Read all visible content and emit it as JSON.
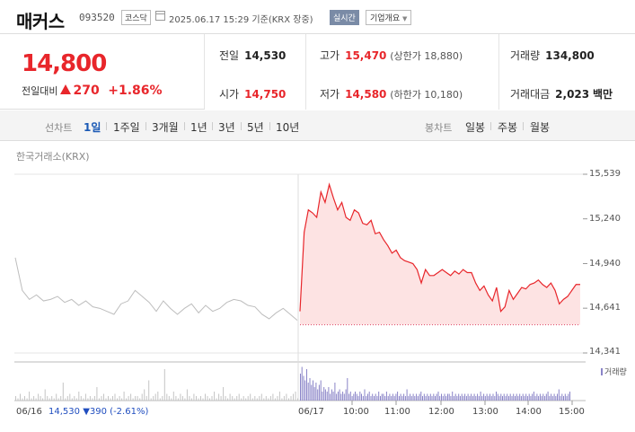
{
  "header": {
    "name": "매커스",
    "code": "093520",
    "market": "코스닥",
    "timestamp": "2025.06.17 15:29 기준(KRX 장중)",
    "realtime_label": "실시간",
    "company_info_label": "기업개요"
  },
  "price": {
    "current": "14,800",
    "change_label": "전일대비",
    "change": "270",
    "change_pct": "+1.86%"
  },
  "stats": {
    "prev_close_label": "전일",
    "prev_close": "14,530",
    "high_label": "고가",
    "high": "15,470",
    "upper_limit": "(상한가 18,880)",
    "volume_label": "거래량",
    "volume": "134,800",
    "open_label": "시가",
    "open": "14,750",
    "low_label": "저가",
    "low": "14,580",
    "lower_limit": "(하한가 10,180)",
    "value_label": "거래대금",
    "value": "2,023",
    "value_unit": "백만"
  },
  "toolbar": {
    "line_label": "선차트",
    "periods": [
      "1일",
      "1주일",
      "3개월",
      "1년",
      "3년",
      "5년",
      "10년"
    ],
    "selected_period": "1일",
    "candle_label": "봉차트",
    "candles": [
      "일봉",
      "주봉",
      "월봉"
    ]
  },
  "chart_data": {
    "type": "line",
    "title": "",
    "source": "한국거래소(KRX)",
    "y_ticks": [
      "15,539",
      "15,240",
      "14,940",
      "14,641",
      "14,341"
    ],
    "ylim": [
      14341,
      15539
    ],
    "x_ticks": [
      "06/16",
      "06/17",
      "10:00",
      "11:00",
      "12:00",
      "13:00",
      "14:00",
      "15:00"
    ],
    "prev_close": 14530,
    "series": [
      {
        "name": "06/16",
        "values": [
          14980,
          14760,
          14700,
          14730,
          14690,
          14700,
          14720,
          14680,
          14700,
          14660,
          14690,
          14650,
          14640,
          14620,
          14600,
          14670,
          14690,
          14760,
          14720,
          14680,
          14620,
          14690,
          14640,
          14600,
          14640,
          14670,
          14610,
          14660,
          14620,
          14640,
          14680,
          14700,
          14690,
          14660,
          14650,
          14600,
          14570,
          14610,
          14640,
          14600,
          14560
        ]
      },
      {
        "name": "06/17",
        "values": [
          14620,
          15150,
          15300,
          15280,
          15250,
          15420,
          15350,
          15470,
          15380,
          15300,
          15350,
          15250,
          15230,
          15300,
          15280,
          15210,
          15200,
          15230,
          15140,
          15150,
          15100,
          15060,
          15010,
          15030,
          14980,
          14960,
          14950,
          14940,
          14900,
          14810,
          14900,
          14860,
          14860,
          14880,
          14900,
          14880,
          14860,
          14890,
          14870,
          14900,
          14880,
          14880,
          14810,
          14760,
          14790,
          14730,
          14690,
          14780,
          14620,
          14650,
          14760,
          14700,
          14740,
          14780,
          14770,
          14800,
          14810,
          14830,
          14800,
          14780,
          14810,
          14760,
          14670,
          14700,
          14720,
          14760,
          14800,
          14800
        ]
      }
    ],
    "volume_label": "거래량",
    "volume": {
      "day1": [
        2,
        1,
        3,
        1,
        2,
        1,
        4,
        1,
        2,
        1,
        3,
        2,
        1,
        5,
        2,
        1,
        2,
        1,
        3,
        1,
        2,
        8,
        1,
        2,
        3,
        1,
        2,
        1,
        4,
        2,
        1,
        3,
        1,
        2,
        1,
        2,
        6,
        1,
        2,
        3,
        1,
        2,
        1,
        2,
        3,
        1,
        2,
        1,
        4,
        1,
        2,
        3,
        1,
        2,
        2,
        1,
        3,
        5,
        2,
        9,
        1,
        2,
        3,
        4,
        1,
        2,
        14,
        3,
        2,
        1,
        4,
        2,
        1,
        3,
        2,
        1,
        5,
        2,
        1,
        3,
        2,
        1,
        2,
        1,
        3,
        2,
        1,
        2,
        4,
        1,
        3,
        2,
        6,
        2,
        1,
        3,
        2,
        1,
        2,
        3,
        1,
        2,
        1,
        2,
        3,
        1,
        2,
        1,
        2,
        3,
        1,
        2,
        1,
        2,
        3,
        1,
        2,
        4,
        1,
        2,
        3,
        1,
        2,
        3,
        4,
        1
      ],
      "day2": [
        12,
        15,
        11,
        9,
        14,
        8,
        10,
        7,
        9,
        6,
        8,
        5,
        7,
        9,
        4,
        6,
        5,
        4,
        6,
        3,
        5,
        4,
        8,
        3,
        4,
        5,
        3,
        4,
        3,
        5,
        10,
        3,
        4,
        2,
        3,
        4,
        3,
        2,
        4,
        3,
        2,
        5,
        2,
        3,
        4,
        2,
        3,
        2,
        3,
        2,
        4,
        2,
        3,
        3,
        2,
        4,
        2,
        3,
        2,
        3,
        2,
        3,
        4,
        2,
        3,
        2,
        3,
        2,
        5,
        2,
        3,
        2,
        3,
        2,
        3,
        2,
        3,
        4,
        2,
        3,
        2,
        3,
        2,
        3,
        2,
        3,
        2,
        3,
        4,
        2,
        3,
        2,
        3,
        2,
        3,
        3,
        2,
        4,
        2,
        3,
        2,
        3,
        2,
        3,
        2,
        3,
        2,
        3,
        2,
        3,
        2,
        3,
        2,
        3,
        2,
        4,
        2,
        3,
        2,
        3,
        2,
        3,
        2,
        3,
        2,
        4,
        3,
        2,
        3,
        2,
        3,
        2,
        3,
        2,
        3,
        2,
        3,
        2,
        3,
        2,
        3,
        2,
        3,
        2,
        3,
        2,
        3,
        2,
        3,
        4,
        2,
        3,
        2,
        3,
        2,
        3,
        2,
        3,
        4,
        2,
        3,
        2,
        3,
        2,
        3,
        5,
        2,
        3,
        2,
        3,
        2,
        3,
        4
      ]
    }
  },
  "prev_day": {
    "date": "06/16",
    "close": "14,530",
    "change": "▼390",
    "change_pct": "(-2.61%)"
  }
}
